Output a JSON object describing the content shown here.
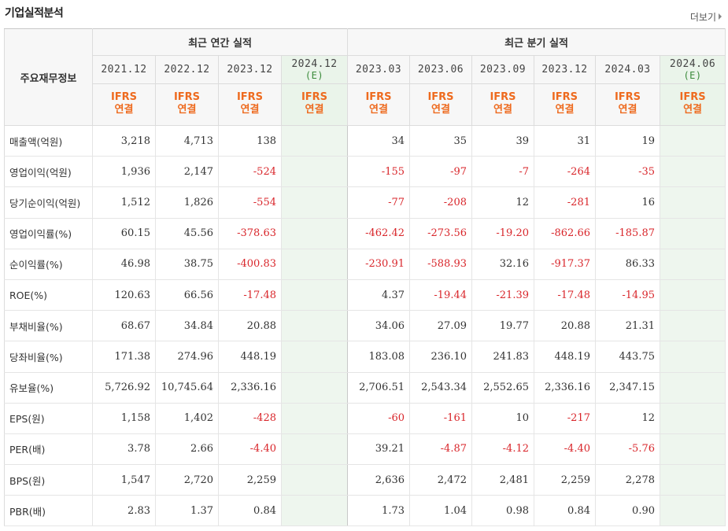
{
  "title": "기업실적분석",
  "more_label": "더보기",
  "header": {
    "label_col": "주요재무정보",
    "annual_group": "최근 연간 실적",
    "quarter_group": "최근 분기 실적",
    "periods": [
      {
        "date": "2021.12",
        "est": "",
        "std": "IFRS",
        "basis": "연결"
      },
      {
        "date": "2022.12",
        "est": "",
        "std": "IFRS",
        "basis": "연결"
      },
      {
        "date": "2023.12",
        "est": "",
        "std": "IFRS",
        "basis": "연결"
      },
      {
        "date": "2024.12",
        "est": "(E)",
        "std": "IFRS",
        "basis": "연결"
      },
      {
        "date": "2023.03",
        "est": "",
        "std": "IFRS",
        "basis": "연결"
      },
      {
        "date": "2023.06",
        "est": "",
        "std": "IFRS",
        "basis": "연결"
      },
      {
        "date": "2023.09",
        "est": "",
        "std": "IFRS",
        "basis": "연결"
      },
      {
        "date": "2023.12",
        "est": "",
        "std": "IFRS",
        "basis": "연결"
      },
      {
        "date": "2024.03",
        "est": "",
        "std": "IFRS",
        "basis": "연결"
      },
      {
        "date": "2024.06",
        "est": "(E)",
        "std": "IFRS",
        "basis": "연결"
      }
    ]
  },
  "rows": [
    {
      "label": "매출액(억원)",
      "values": [
        "3,218",
        "4,713",
        "138",
        "",
        "34",
        "35",
        "39",
        "31",
        "19",
        ""
      ]
    },
    {
      "label": "영업이익(억원)",
      "values": [
        "1,936",
        "2,147",
        "-524",
        "",
        "-155",
        "-97",
        "-7",
        "-264",
        "-35",
        ""
      ]
    },
    {
      "label": "당기순이익(억원)",
      "values": [
        "1,512",
        "1,826",
        "-554",
        "",
        "-77",
        "-208",
        "12",
        "-281",
        "16",
        ""
      ]
    },
    {
      "label": "영업이익률(%)",
      "values": [
        "60.15",
        "45.56",
        "-378.63",
        "",
        "-462.42",
        "-273.56",
        "-19.20",
        "-862.66",
        "-185.87",
        ""
      ]
    },
    {
      "label": "순이익률(%)",
      "values": [
        "46.98",
        "38.75",
        "-400.83",
        "",
        "-230.91",
        "-588.93",
        "32.16",
        "-917.37",
        "86.33",
        ""
      ]
    },
    {
      "label": "ROE(%)",
      "values": [
        "120.63",
        "66.56",
        "-17.48",
        "",
        "4.37",
        "-19.44",
        "-21.39",
        "-17.48",
        "-14.95",
        ""
      ]
    },
    {
      "label": "부채비율(%)",
      "values": [
        "68.67",
        "34.84",
        "20.88",
        "",
        "34.06",
        "27.09",
        "19.77",
        "20.88",
        "21.31",
        ""
      ]
    },
    {
      "label": "당좌비율(%)",
      "values": [
        "171.38",
        "274.96",
        "448.19",
        "",
        "183.08",
        "236.10",
        "241.83",
        "448.19",
        "443.75",
        ""
      ]
    },
    {
      "label": "유보율(%)",
      "values": [
        "5,726.92",
        "10,745.64",
        "2,336.16",
        "",
        "2,706.51",
        "2,543.34",
        "2,552.65",
        "2,336.16",
        "2,347.15",
        ""
      ]
    },
    {
      "label": "EPS(원)",
      "values": [
        "1,158",
        "1,402",
        "-428",
        "",
        "-60",
        "-161",
        "10",
        "-217",
        "12",
        ""
      ]
    },
    {
      "label": "PER(배)",
      "values": [
        "3.78",
        "2.66",
        "-4.40",
        "",
        "39.21",
        "-4.87",
        "-4.12",
        "-4.40",
        "-5.76",
        ""
      ]
    },
    {
      "label": "BPS(원)",
      "values": [
        "1,547",
        "2,720",
        "2,259",
        "",
        "2,636",
        "2,472",
        "2,481",
        "2,259",
        "2,278",
        ""
      ]
    },
    {
      "label": "PBR(배)",
      "values": [
        "2.83",
        "1.37",
        "0.84",
        "",
        "1.73",
        "1.04",
        "0.98",
        "0.84",
        "0.90",
        ""
      ]
    }
  ],
  "colors": {
    "negative": "#d9262b",
    "ifrs": "#ee6a1e",
    "estimate_bg": "#eef6ee",
    "estimate_text": "#3a8a3a"
  }
}
